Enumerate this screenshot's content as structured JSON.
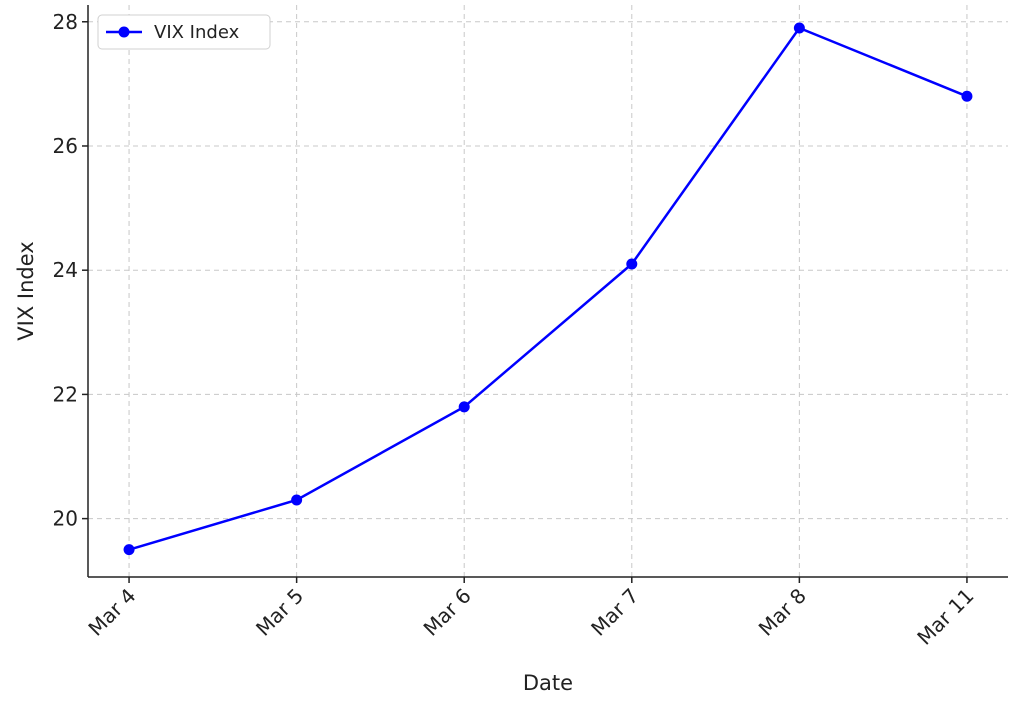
{
  "chart_data": {
    "type": "line",
    "x_label": "Date",
    "y_label": "VIX Index",
    "categories": [
      "Mar 4",
      "Mar 5",
      "Mar 6",
      "Mar 7",
      "Mar 8",
      "Mar 11"
    ],
    "series": [
      {
        "name": "VIX Index",
        "color": "#0000ff",
        "values": [
          19.5,
          20.3,
          21.8,
          24.1,
          27.9,
          26.8
        ]
      }
    ],
    "ylim": [
      19.06,
      28.27
    ],
    "yticks": [
      20,
      22,
      24,
      26,
      28
    ],
    "grid": true,
    "legend": "upper left"
  }
}
